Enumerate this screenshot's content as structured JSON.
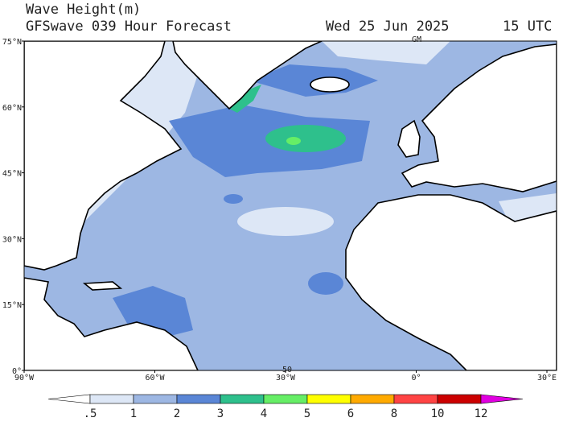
{
  "header": {
    "title": "Wave Height(m)",
    "subtitle": "GFSwave 039 Hour Forecast",
    "date": "Wed 25 Jun 2025",
    "time": "15 UTC"
  },
  "map": {
    "lat_labels": [
      "75°N",
      "60°N",
      "45°N",
      "30°N",
      "15°N",
      "0°"
    ],
    "lon_labels": [
      "90°W",
      "60°W",
      "30°W",
      "0°",
      "30°E"
    ],
    "top_mark": "GM",
    "bottom_mark": "50",
    "colorbar": {
      "ticks": [
        ".5",
        "1",
        "2",
        "3",
        "4",
        "5",
        "6",
        "8",
        "10",
        "12"
      ],
      "colors": [
        "#ffffff",
        "#dde7f6",
        "#9db7e3",
        "#5a86d6",
        "#2ec08c",
        "#66ee66",
        "#ffff00",
        "#ffaa00",
        "#ff4444",
        "#cc0000",
        "#e000e0"
      ]
    }
  }
}
